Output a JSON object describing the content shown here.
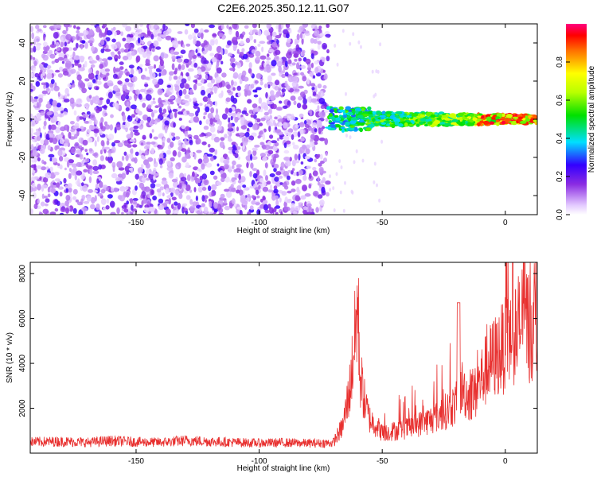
{
  "title": "C2E6.2025.350.12.11.G07",
  "chart_data": [
    {
      "type": "heatmap",
      "xlabel": "Height of straight line (km)",
      "ylabel": "Frequency (Hz)",
      "xlim": [
        -193,
        13
      ],
      "ylim": [
        -50,
        50
      ],
      "xticks": [
        -150,
        -100,
        -50,
        0
      ],
      "yticks": [
        -40,
        -20,
        0,
        20,
        40
      ],
      "colorbar": {
        "label": "Normalized spectral amplitude",
        "range": [
          0,
          1
        ],
        "ticks": [
          0.0,
          0.2,
          0.4,
          0.6,
          0.8
        ]
      },
      "regions": [
        {
          "name": "noise",
          "x_range": [
            -193,
            -72
          ],
          "freq_range": [
            -50,
            50
          ],
          "amplitude": [
            0.02,
            0.25
          ]
        },
        {
          "name": "signal",
          "x_range": [
            -72,
            13
          ],
          "freq_center": 0,
          "freq_halfwidth": 3,
          "amplitude": [
            0.3,
            1.0
          ]
        }
      ]
    },
    {
      "type": "line",
      "xlabel": "Height of straight line (km)",
      "ylabel": "SNR (10 * v/v)",
      "xlim": [
        -193,
        13
      ],
      "ylim": [
        0,
        8500
      ],
      "xticks": [
        -150,
        -100,
        -50,
        0
      ],
      "yticks": [
        2000,
        4000,
        6000,
        8000
      ],
      "color": "#e8302f",
      "series": [
        {
          "name": "SNR",
          "x": [
            -193,
            -180,
            -170,
            -160,
            -150,
            -140,
            -130,
            -120,
            -110,
            -100,
            -90,
            -80,
            -70,
            -66,
            -63,
            -61,
            -60,
            -59,
            -57,
            -55,
            -52,
            -50,
            -45,
            -40,
            -35,
            -30,
            -25,
            -20,
            -18,
            -15,
            -12,
            -10,
            -5,
            0,
            5,
            8,
            10,
            13
          ],
          "y": [
            500,
            520,
            480,
            550,
            500,
            480,
            560,
            520,
            480,
            450,
            470,
            440,
            450,
            1200,
            3000,
            5200,
            6700,
            3500,
            2200,
            1500,
            1200,
            900,
            1000,
            1100,
            1300,
            1500,
            1800,
            2200,
            3000,
            2500,
            2700,
            3300,
            4200,
            4800,
            5500,
            6200,
            5500,
            5800
          ]
        }
      ]
    }
  ]
}
